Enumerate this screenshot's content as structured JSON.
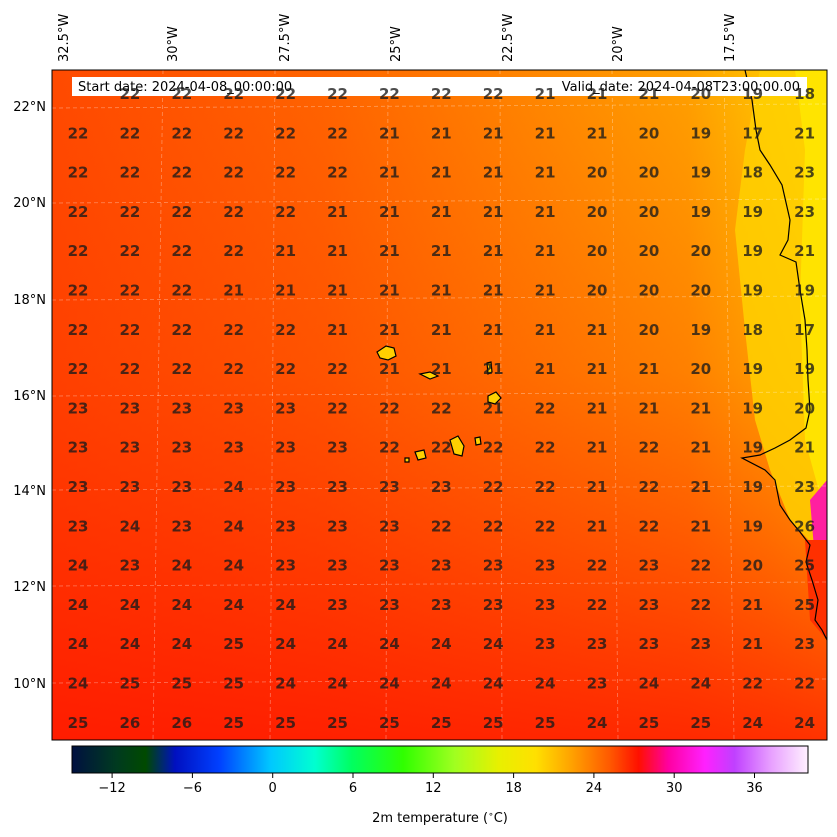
{
  "header": {
    "start_date": "Start date: 2024-04-08_00:00:00",
    "valid_date": "Valid_date: 2024-04-08T23:00:00.00"
  },
  "map": {
    "lon_labels": [
      "32.5°W",
      "30°W",
      "27.5°W",
      "25°W",
      "22.5°W",
      "20°W",
      "17.5°W"
    ],
    "lat_labels": [
      "22°N",
      "20°N",
      "18°N",
      "16°N",
      "14°N",
      "12°N",
      "10°N"
    ],
    "grid": [
      [
        "22",
        "22",
        "22",
        "22",
        "22",
        "22",
        "22",
        "22",
        "21",
        "21",
        "21",
        "20",
        "19",
        "18"
      ],
      [
        "22",
        "22",
        "22",
        "22",
        "22",
        "22",
        "21",
        "21",
        "21",
        "21",
        "21",
        "20",
        "19",
        "17",
        "21"
      ],
      [
        "22",
        "22",
        "22",
        "22",
        "22",
        "22",
        "21",
        "21",
        "21",
        "21",
        "20",
        "20",
        "19",
        "18",
        "23"
      ],
      [
        "22",
        "22",
        "22",
        "22",
        "22",
        "21",
        "21",
        "21",
        "21",
        "21",
        "20",
        "20",
        "19",
        "19",
        "23"
      ],
      [
        "22",
        "22",
        "22",
        "22",
        "21",
        "21",
        "21",
        "21",
        "21",
        "21",
        "20",
        "20",
        "20",
        "19",
        "21"
      ],
      [
        "22",
        "22",
        "22",
        "21",
        "21",
        "21",
        "21",
        "21",
        "21",
        "21",
        "20",
        "20",
        "20",
        "19",
        "19"
      ],
      [
        "22",
        "22",
        "22",
        "22",
        "22",
        "21",
        "21",
        "21",
        "21",
        "21",
        "21",
        "20",
        "19",
        "18",
        "17"
      ],
      [
        "22",
        "22",
        "22",
        "22",
        "22",
        "22",
        "21",
        "21",
        "21",
        "21",
        "21",
        "21",
        "20",
        "19",
        "19"
      ],
      [
        "23",
        "23",
        "23",
        "23",
        "23",
        "22",
        "22",
        "22",
        "21",
        "22",
        "21",
        "21",
        "21",
        "19",
        "20"
      ],
      [
        "23",
        "23",
        "23",
        "23",
        "23",
        "23",
        "22",
        "22",
        "22",
        "22",
        "21",
        "22",
        "21",
        "19",
        "21"
      ],
      [
        "23",
        "23",
        "23",
        "24",
        "23",
        "23",
        "23",
        "23",
        "22",
        "22",
        "21",
        "22",
        "21",
        "19",
        "23"
      ],
      [
        "23",
        "24",
        "23",
        "24",
        "23",
        "23",
        "23",
        "22",
        "22",
        "22",
        "21",
        "22",
        "21",
        "19",
        "26"
      ],
      [
        "24",
        "23",
        "24",
        "24",
        "23",
        "23",
        "23",
        "23",
        "23",
        "23",
        "22",
        "23",
        "22",
        "20",
        "25"
      ],
      [
        "24",
        "24",
        "24",
        "24",
        "24",
        "23",
        "23",
        "23",
        "23",
        "23",
        "22",
        "23",
        "22",
        "21",
        "25"
      ],
      [
        "24",
        "24",
        "24",
        "25",
        "24",
        "24",
        "24",
        "24",
        "24",
        "23",
        "23",
        "23",
        "23",
        "21",
        "23"
      ],
      [
        "24",
        "25",
        "25",
        "25",
        "24",
        "24",
        "24",
        "24",
        "24",
        "24",
        "23",
        "24",
        "24",
        "22",
        "22"
      ],
      [
        "25",
        "26",
        "26",
        "25",
        "25",
        "25",
        "25",
        "25",
        "25",
        "25",
        "24",
        "25",
        "25",
        "24",
        "24"
      ]
    ]
  },
  "colorbar": {
    "ticks": [
      "−12",
      "−6",
      "0",
      "6",
      "12",
      "18",
      "24",
      "30",
      "36"
    ],
    "tick_values": [
      -12,
      -6,
      0,
      6,
      12,
      18,
      24,
      30,
      36
    ],
    "vmin": -15,
    "vmax": 40,
    "label": "2m temperature ($^\\circ$C)"
  },
  "colors": {
    "background_warm": "#ff3a00",
    "mid_orange": "#ff8a00",
    "coast_yellow": "#ffd800"
  }
}
